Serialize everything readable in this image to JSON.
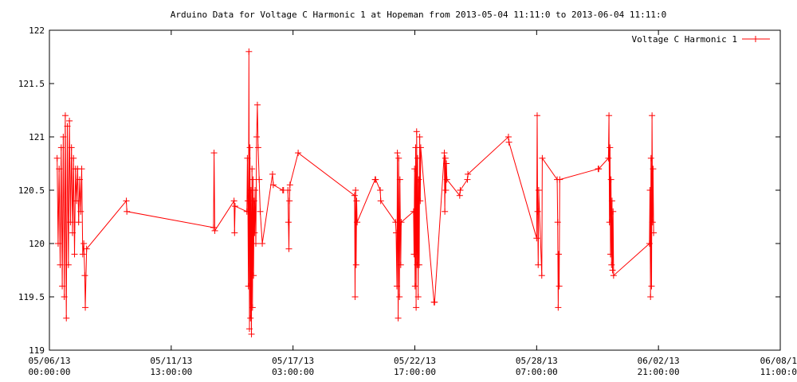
{
  "chart_data": {
    "type": "line",
    "title": "Arduino Data for Voltage C Harmonic 1 at Hopeman from 2013-05-04 11:11:0 to 2013-06-04 11:11:0",
    "xlabel": "",
    "ylabel": "",
    "ylim": [
      119,
      122
    ],
    "xlim": [
      0,
      28.5
    ],
    "x_unit": "days since 05/06/13 00:00:00",
    "y_ticks": [
      "119",
      "119.5",
      "120",
      "120.5",
      "121",
      "121.5",
      "122"
    ],
    "x_ticks": [
      {
        "line1": "05/06/13",
        "line2": "00:00:00"
      },
      {
        "line1": "05/11/13",
        "line2": "13:00:00"
      },
      {
        "line1": "05/17/13",
        "line2": "03:00:00"
      },
      {
        "line1": "05/22/13",
        "line2": "17:00:00"
      },
      {
        "line1": "05/28/13",
        "line2": "07:00:00"
      },
      {
        "line1": "06/02/13",
        "line2": "21:00:00"
      },
      {
        "line1": "06/08/1",
        "line2": "11:00:0"
      }
    ],
    "grid": false,
    "legend_position": "top-right",
    "color": "#ff0000",
    "series": [
      {
        "name": "Voltage C Harmonic 1",
        "points": [
          [
            0.3,
            120.8
          ],
          [
            0.34,
            120.0
          ],
          [
            0.38,
            120.7
          ],
          [
            0.42,
            119.8
          ],
          [
            0.46,
            120.9
          ],
          [
            0.5,
            119.6
          ],
          [
            0.54,
            121.0
          ],
          [
            0.58,
            119.5
          ],
          [
            0.62,
            121.2
          ],
          [
            0.66,
            119.3
          ],
          [
            0.7,
            121.1
          ],
          [
            0.74,
            119.8
          ],
          [
            0.78,
            121.15
          ],
          [
            0.82,
            120.2
          ],
          [
            0.86,
            120.9
          ],
          [
            0.9,
            120.1
          ],
          [
            0.94,
            120.8
          ],
          [
            0.98,
            119.9
          ],
          [
            1.02,
            120.7
          ],
          [
            1.06,
            120.4
          ],
          [
            1.1,
            120.7
          ],
          [
            1.14,
            120.2
          ],
          [
            1.18,
            120.6
          ],
          [
            1.22,
            120.3
          ],
          [
            1.26,
            120.7
          ],
          [
            1.3,
            119.9
          ],
          [
            1.34,
            120.0
          ],
          [
            1.38,
            119.7
          ],
          [
            1.4,
            119.4
          ],
          [
            1.45,
            119.95
          ],
          [
            3.0,
            120.4
          ],
          [
            3.02,
            120.3
          ],
          [
            6.4,
            120.15
          ],
          [
            6.42,
            120.85
          ],
          [
            6.45,
            120.12
          ],
          [
            7.2,
            120.4
          ],
          [
            7.22,
            120.1
          ],
          [
            7.24,
            120.35
          ],
          [
            7.7,
            120.3
          ],
          [
            7.72,
            120.8
          ],
          [
            7.74,
            120.4
          ],
          [
            7.76,
            119.6
          ],
          [
            7.78,
            121.8
          ],
          [
            7.8,
            119.2
          ],
          [
            7.82,
            120.9
          ],
          [
            7.84,
            119.3
          ],
          [
            7.86,
            120.5
          ],
          [
            7.88,
            119.15
          ],
          [
            7.9,
            120.7
          ],
          [
            7.92,
            119.4
          ],
          [
            7.94,
            120.6
          ],
          [
            7.96,
            119.7
          ],
          [
            7.98,
            120.4
          ],
          [
            8.0,
            120.1
          ],
          [
            8.02,
            120.5
          ],
          [
            8.05,
            120.0
          ],
          [
            8.08,
            121.0
          ],
          [
            8.11,
            121.3
          ],
          [
            8.14,
            120.9
          ],
          [
            8.18,
            120.6
          ],
          [
            8.22,
            120.3
          ],
          [
            8.3,
            120.0
          ],
          [
            8.7,
            120.65
          ],
          [
            8.73,
            120.55
          ],
          [
            9.1,
            120.5
          ],
          [
            9.13,
            120.5
          ],
          [
            9.3,
            120.5
          ],
          [
            9.32,
            120.2
          ],
          [
            9.34,
            119.95
          ],
          [
            9.36,
            120.4
          ],
          [
            9.38,
            120.55
          ],
          [
            9.7,
            120.85
          ],
          [
            11.9,
            120.45
          ],
          [
            11.92,
            119.5
          ],
          [
            11.94,
            120.5
          ],
          [
            11.96,
            119.8
          ],
          [
            11.98,
            120.4
          ],
          [
            12.0,
            120.2
          ],
          [
            12.7,
            120.6
          ],
          [
            12.72,
            120.6
          ],
          [
            12.9,
            120.5
          ],
          [
            12.92,
            120.4
          ],
          [
            13.5,
            120.2
          ],
          [
            13.52,
            120.1
          ],
          [
            13.55,
            119.6
          ],
          [
            13.57,
            120.85
          ],
          [
            13.6,
            119.3
          ],
          [
            13.62,
            120.8
          ],
          [
            13.65,
            119.5
          ],
          [
            13.67,
            120.6
          ],
          [
            13.7,
            119.8
          ],
          [
            13.72,
            120.2
          ],
          [
            14.2,
            120.3
          ],
          [
            14.22,
            119.9
          ],
          [
            14.24,
            120.7
          ],
          [
            14.26,
            119.6
          ],
          [
            14.28,
            120.9
          ],
          [
            14.3,
            119.4
          ],
          [
            14.32,
            121.05
          ],
          [
            14.34,
            119.8
          ],
          [
            14.36,
            120.8
          ],
          [
            14.38,
            119.5
          ],
          [
            14.4,
            120.6
          ],
          [
            14.42,
            119.8
          ],
          [
            14.44,
            121.0
          ],
          [
            14.46,
            120.4
          ],
          [
            14.48,
            120.9
          ],
          [
            15.0,
            119.45
          ],
          [
            15.02,
            119.45
          ],
          [
            15.4,
            120.85
          ],
          [
            15.42,
            120.3
          ],
          [
            15.44,
            120.8
          ],
          [
            15.46,
            120.5
          ],
          [
            15.48,
            120.75
          ],
          [
            15.5,
            120.6
          ],
          [
            16.0,
            120.45
          ],
          [
            16.02,
            120.5
          ],
          [
            16.3,
            120.6
          ],
          [
            16.32,
            120.65
          ],
          [
            17.9,
            121.0
          ],
          [
            17.92,
            120.95
          ],
          [
            19.0,
            120.05
          ],
          [
            19.02,
            121.2
          ],
          [
            19.04,
            120.3
          ],
          [
            19.06,
            119.8
          ],
          [
            19.08,
            120.5
          ],
          [
            19.2,
            119.7
          ],
          [
            19.22,
            120.8
          ],
          [
            19.8,
            120.6
          ],
          [
            19.82,
            120.2
          ],
          [
            19.84,
            119.4
          ],
          [
            19.86,
            119.9
          ],
          [
            19.88,
            119.6
          ],
          [
            19.9,
            120.6
          ],
          [
            21.4,
            120.7
          ],
          [
            21.42,
            120.7
          ],
          [
            21.8,
            120.8
          ],
          [
            21.82,
            121.2
          ],
          [
            21.84,
            120.2
          ],
          [
            21.86,
            120.9
          ],
          [
            21.88,
            119.9
          ],
          [
            21.9,
            120.6
          ],
          [
            21.92,
            119.8
          ],
          [
            21.94,
            120.4
          ],
          [
            21.96,
            119.75
          ],
          [
            21.98,
            120.3
          ],
          [
            22.0,
            119.7
          ],
          [
            23.4,
            120.0
          ],
          [
            23.42,
            120.5
          ],
          [
            23.44,
            119.5
          ],
          [
            23.46,
            120.8
          ],
          [
            23.48,
            119.6
          ],
          [
            23.5,
            121.2
          ],
          [
            23.52,
            120.2
          ],
          [
            23.54,
            120.7
          ],
          [
            23.56,
            120.1
          ]
        ]
      }
    ]
  }
}
